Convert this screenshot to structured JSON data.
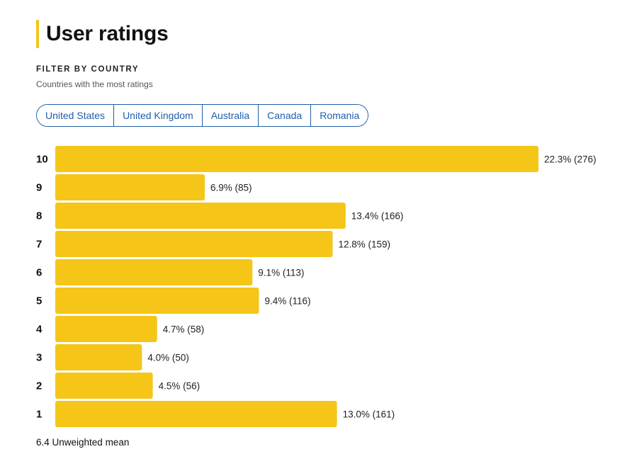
{
  "title": "User ratings",
  "filter": {
    "label": "FILTER BY COUNTRY",
    "subtitle": "Countries with the most ratings",
    "countries": [
      "United States",
      "United Kingdom",
      "Australia",
      "Canada",
      "Romania"
    ]
  },
  "colors": {
    "bar": "#f5c518",
    "accent": "#f5c518",
    "link": "#1f5fa8"
  },
  "chart_data": {
    "type": "bar",
    "orientation": "horizontal",
    "categories": [
      "10",
      "9",
      "8",
      "7",
      "6",
      "5",
      "4",
      "3",
      "2",
      "1"
    ],
    "values": [
      22.3,
      6.9,
      13.4,
      12.8,
      9.1,
      9.4,
      4.7,
      4.0,
      4.5,
      13.0
    ],
    "counts": [
      276,
      85,
      166,
      159,
      113,
      116,
      58,
      50,
      56,
      161
    ],
    "data_labels": [
      "22.3% (276)",
      "6.9% (85)",
      "13.4% (166)",
      "12.8% (159)",
      "9.1% (113)",
      "9.4% (116)",
      "4.7% (58)",
      "4.0% (50)",
      "4.5% (56)",
      "13.0% (161)"
    ],
    "xlim": [
      0,
      22.3
    ]
  },
  "summary": "6.4 Unweighted mean"
}
